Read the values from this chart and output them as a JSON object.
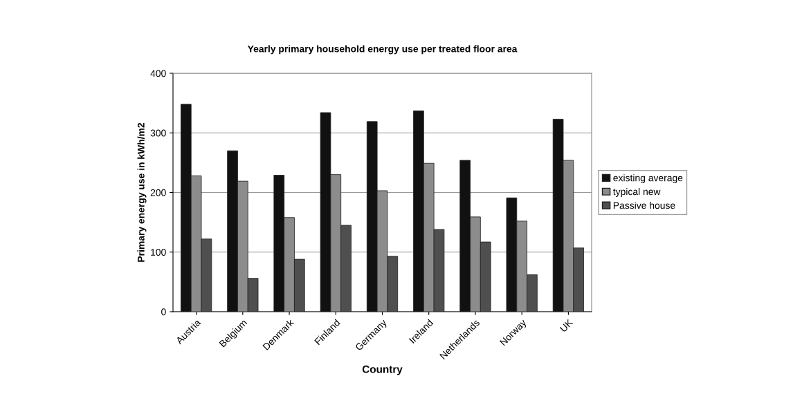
{
  "chart_data": {
    "type": "bar",
    "title": "Yearly primary household energy use per treated floor area",
    "xlabel": "Country",
    "ylabel": "Primary energy use in kWh/m2",
    "categories": [
      "Austria",
      "Belgium",
      "Denmark",
      "Finland",
      "Germany",
      "Ireland",
      "Netherlands",
      "Norway",
      "UK"
    ],
    "series": [
      {
        "name": "existing average",
        "color": "#111111",
        "values": [
          348,
          270,
          229,
          334,
          319,
          337,
          254,
          191,
          323
        ]
      },
      {
        "name": "typical new",
        "color": "#8c8c8c",
        "values": [
          228,
          219,
          158,
          230,
          203,
          249,
          159,
          152,
          254
        ]
      },
      {
        "name": "Passive house",
        "color": "#4f4f4f",
        "values": [
          122,
          56,
          88,
          145,
          93,
          138,
          117,
          62,
          107
        ]
      }
    ],
    "ylim": [
      0,
      400
    ],
    "yticks": [
      0,
      100,
      200,
      300,
      400
    ],
    "grid": "y",
    "legend": "right"
  }
}
